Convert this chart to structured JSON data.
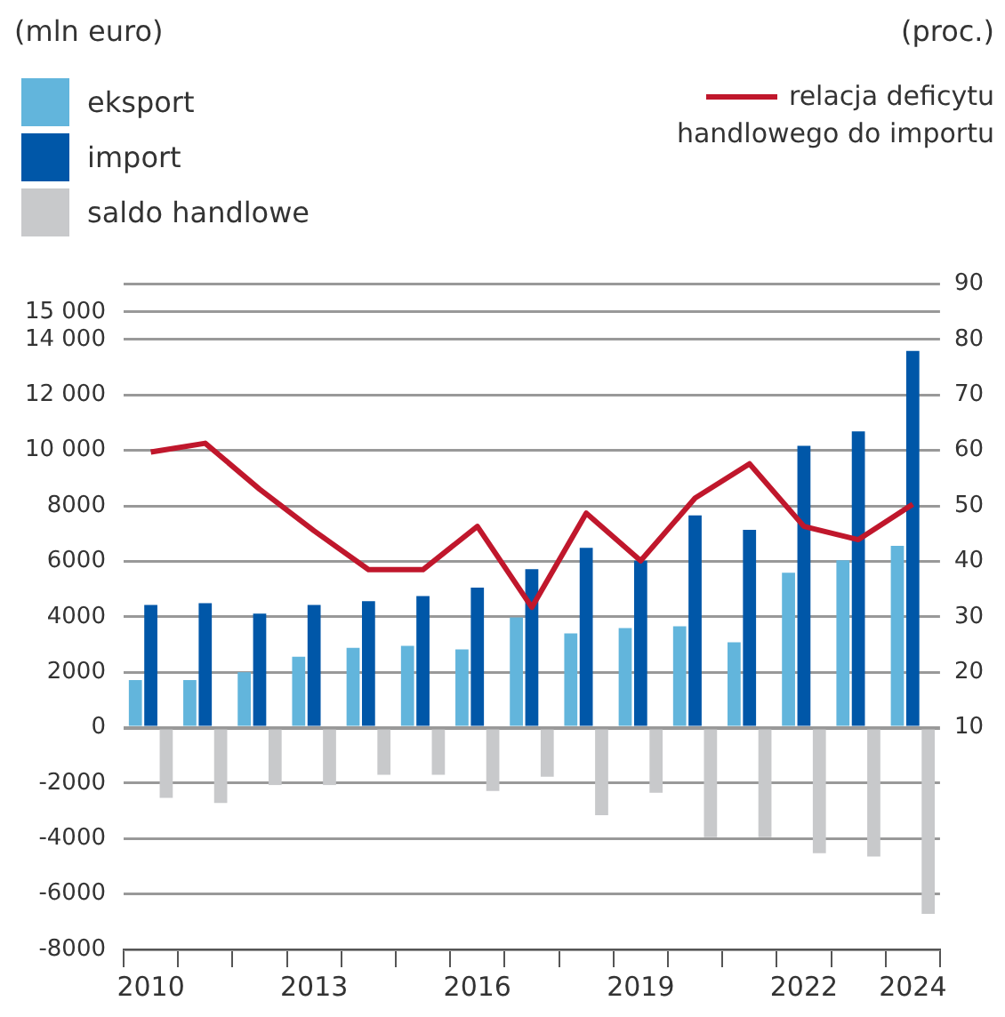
{
  "chart_data": {
    "type": "bar",
    "annotations": [
      "(mln euro)",
      "(proc.)"
    ],
    "categories": [
      "2010",
      null,
      null,
      "2013",
      null,
      null,
      "2016",
      null,
      null,
      "2019",
      null,
      null,
      "2022",
      null,
      "2024"
    ],
    "series": [
      {
        "name": "eksport",
        "type": "bar",
        "color": "#62b5dc",
        "values": [
          1720,
          1720,
          2000,
          2560,
          2880,
          2950,
          2820,
          3980,
          3400,
          3590,
          3660,
          3080,
          5590,
          6040,
          6560
        ]
      },
      {
        "name": "import",
        "type": "bar",
        "color": "#0057a8",
        "values": [
          4430,
          4490,
          4110,
          4430,
          4560,
          4750,
          5050,
          5720,
          6490,
          6020,
          7660,
          7140,
          10170,
          10690,
          13590
        ]
      },
      {
        "name": "saldo handlowe",
        "type": "bar",
        "color": "#c8c9cb",
        "values": [
          -2530,
          -2720,
          -2070,
          -2070,
          -1700,
          -1700,
          -2280,
          -1770,
          -3160,
          -2350,
          -3950,
          -3950,
          -4530,
          -4650,
          -6720
        ]
      },
      {
        "name": "relacja deficytu handlowego do importu",
        "type": "line",
        "axis": "y2",
        "color": "#c0172c",
        "values": [
          59.7,
          61.3,
          53,
          45.5,
          38.5,
          38.5,
          46.3,
          31.7,
          48.7,
          40.1,
          51.4,
          57.6,
          46.3,
          43.9,
          50.3
        ]
      }
    ],
    "ylim": [
      -8000,
      16000
    ],
    "yticks": [
      {
        "value": 16000,
        "label": null
      },
      {
        "value": 15000,
        "label": "15 000"
      },
      {
        "value": 14000,
        "label": "14 000"
      },
      {
        "value": 12000,
        "label": "12 000"
      },
      {
        "value": 10000,
        "label": "10 000"
      },
      8000,
      6000,
      4000,
      2000,
      0,
      -2000,
      -4000,
      -6000,
      -8000
    ],
    "y2lim": [
      -30,
      90
    ],
    "y2ticks": [
      10,
      20,
      30,
      40,
      50,
      60,
      70,
      80,
      90
    ],
    "grid": "y",
    "legend": "top",
    "marker": "none",
    "line_style": "solid"
  }
}
